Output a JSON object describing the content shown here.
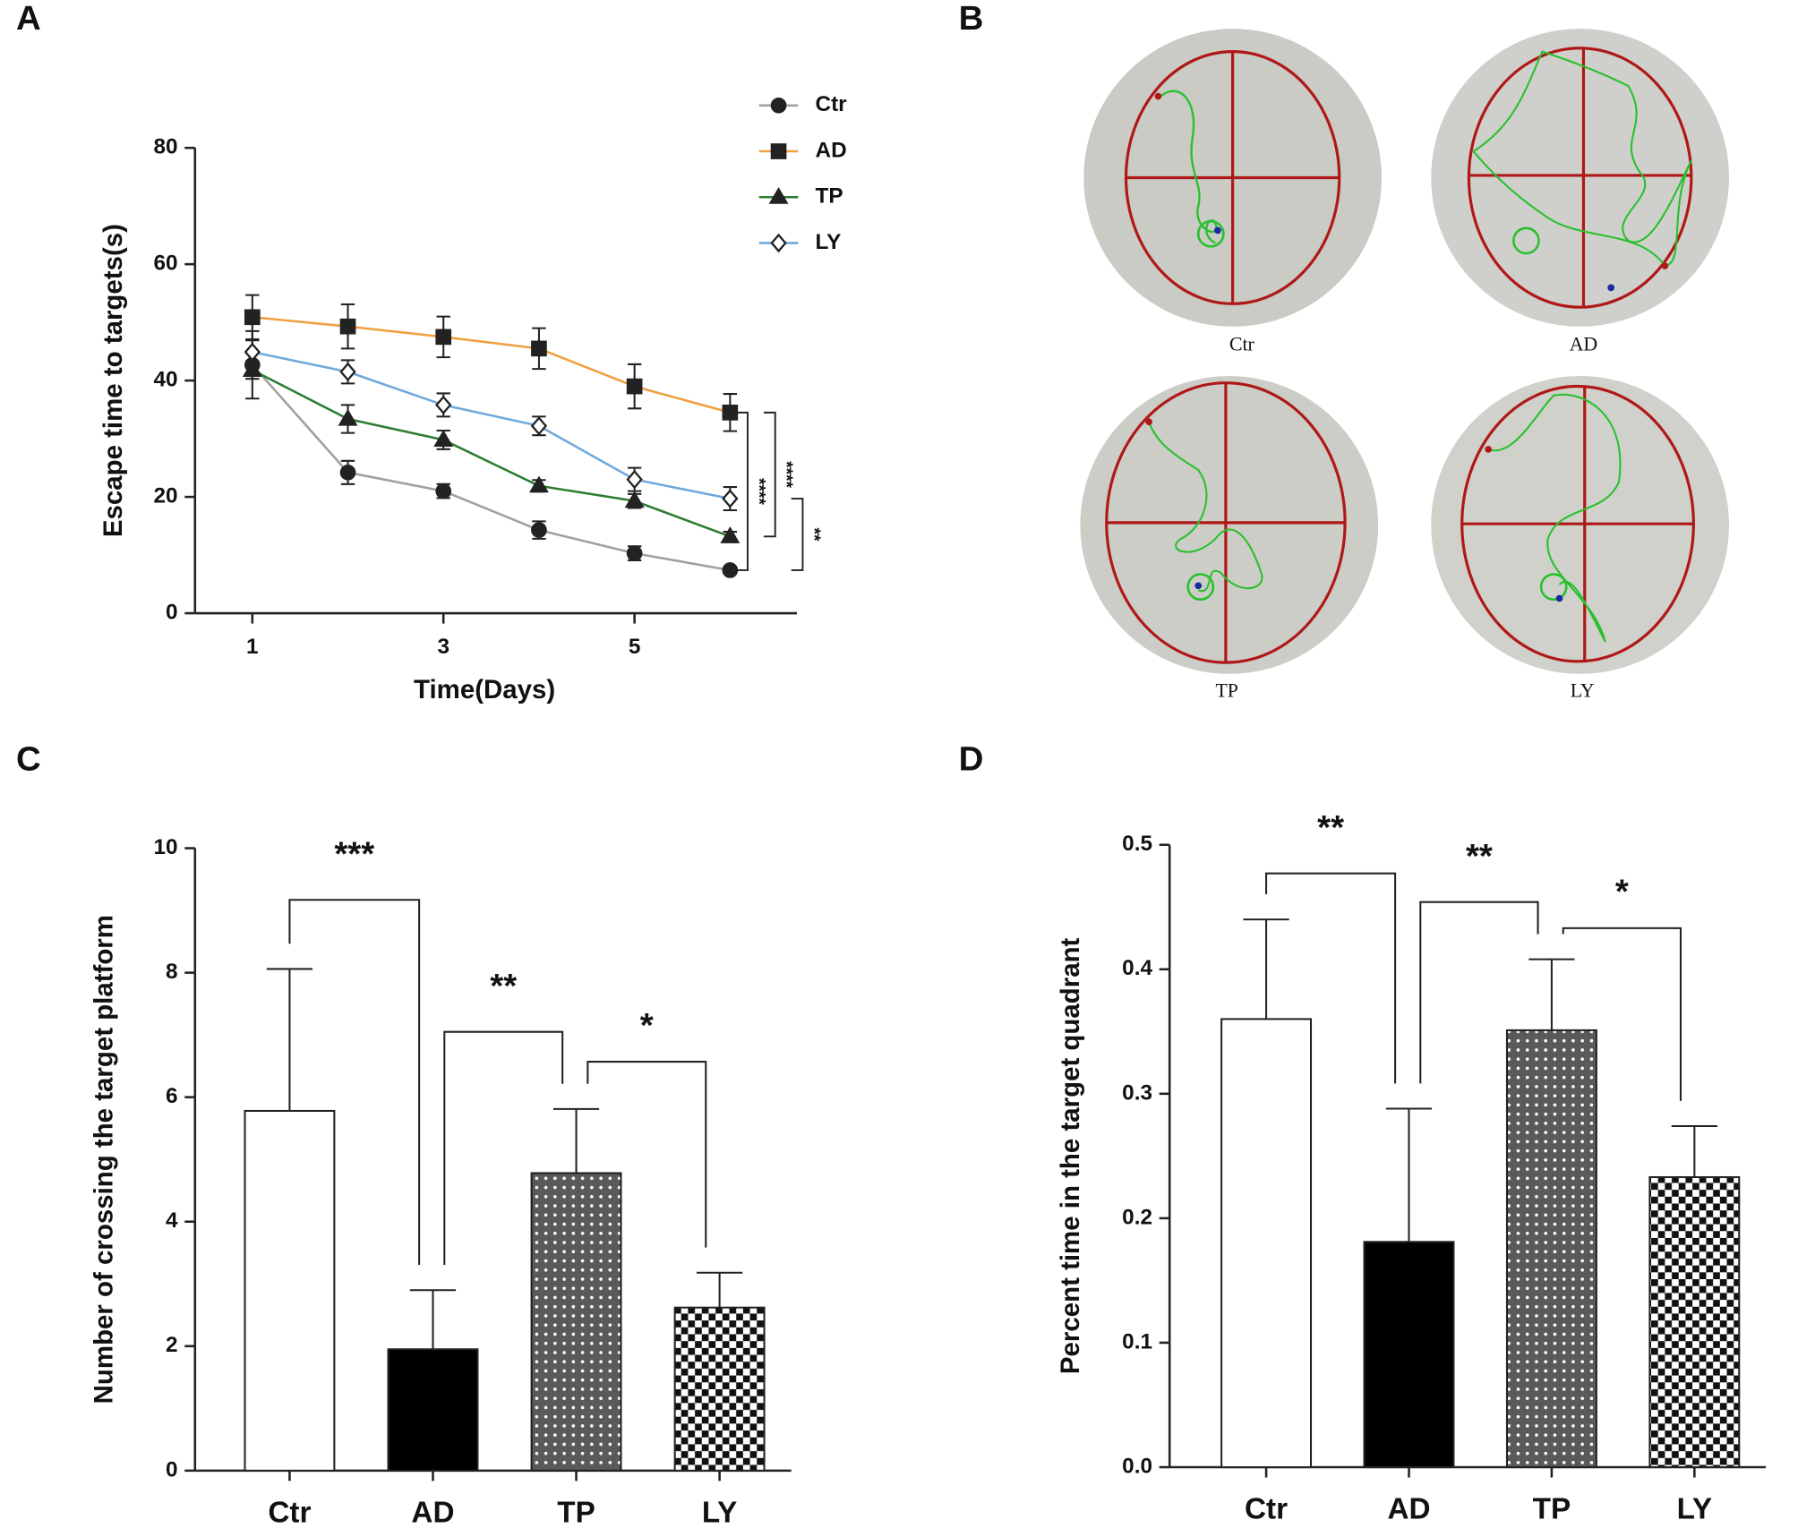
{
  "panel_labels": [
    "A",
    "B",
    "C",
    "D"
  ],
  "maze_panels": {
    "labels": [
      "Ctr",
      "AD",
      "TP",
      "LY"
    ]
  },
  "chart_data": [
    {
      "type": "line",
      "y_label": "Escape time to targets(s)",
      "x_label": "Time(Days)",
      "x": [
        1,
        2,
        3,
        4,
        5,
        6
      ],
      "xlim": [
        0.4,
        6.7
      ],
      "xticks": [
        1,
        3,
        5
      ],
      "ylim": [
        0,
        80
      ],
      "yticks": [
        0,
        20,
        40,
        60,
        80
      ],
      "series": [
        {
          "name": "Ctr",
          "color": "#a0a0a0",
          "marker": "circle",
          "marker_filled": true,
          "values": [
            42.7,
            24.2,
            21.0,
            14.3,
            10.3,
            7.4
          ],
          "errors": [
            5.8,
            2.0,
            1.2,
            1.5,
            1.2,
            0.5
          ]
        },
        {
          "name": "AD",
          "color": "#f0a040",
          "marker": "square",
          "marker_filled": true,
          "values": [
            50.9,
            49.3,
            47.5,
            45.5,
            39.0,
            34.5
          ],
          "errors": [
            3.8,
            3.8,
            3.5,
            3.5,
            3.8,
            3.2
          ]
        },
        {
          "name": "TP",
          "color": "#2e7d32",
          "marker": "triangle",
          "marker_filled": true,
          "values": [
            41.8,
            33.4,
            29.8,
            21.9,
            19.3,
            13.2
          ],
          "errors": [
            1.5,
            2.4,
            1.6,
            1.0,
            1.2,
            0.8
          ]
        },
        {
          "name": "LY",
          "color": "#6fa8dc",
          "marker": "diamond",
          "marker_filled": false,
          "values": [
            44.9,
            41.5,
            35.8,
            32.2,
            23.0,
            19.7
          ],
          "errors": [
            2.0,
            2.0,
            2.0,
            1.6,
            2.0,
            2.0
          ]
        }
      ],
      "annotations": [
        {
          "text": "****",
          "between": [
            1,
            0
          ]
        },
        {
          "text": "****",
          "between": [
            1,
            2
          ]
        },
        {
          "text": "**",
          "between": [
            3,
            0
          ]
        }
      ]
    },
    {
      "type": "bar",
      "y_label": "Number of crossing the target platform",
      "categories": [
        "Ctr",
        "AD",
        "TP",
        "LY"
      ],
      "values": [
        5.78,
        1.95,
        4.78,
        2.62
      ],
      "errors": [
        2.28,
        0.95,
        1.03,
        0.56
      ],
      "fills": [
        "white",
        "black",
        "dots",
        "checker"
      ],
      "ylim": [
        0,
        10
      ],
      "yticks": [
        0,
        2,
        4,
        6,
        8,
        10
      ],
      "annotations": [
        {
          "text": "***",
          "between": [
            0,
            1
          ],
          "level": 9.17
        },
        {
          "text": "**",
          "between": [
            1,
            2
          ],
          "level": 7.05
        },
        {
          "text": "*",
          "between": [
            2,
            3
          ],
          "level": 6.57
        }
      ]
    },
    {
      "type": "bar",
      "y_label": "Percent time in the target quadrant",
      "categories": [
        "Ctr",
        "AD",
        "TP",
        "LY"
      ],
      "values": [
        0.36,
        0.181,
        0.351,
        0.233
      ],
      "errors": [
        0.08,
        0.107,
        0.057,
        0.041
      ],
      "fills": [
        "white",
        "black",
        "dots",
        "checker"
      ],
      "ylim": [
        0,
        0.5
      ],
      "yticks": [
        {
          "value": 0,
          "label": "0.0"
        },
        0.1,
        0.2,
        0.3,
        0.4,
        0.5
      ],
      "annotations": [
        {
          "text": "**",
          "between": [
            0,
            1
          ],
          "level": 0.477
        },
        {
          "text": "**",
          "between": [
            1,
            2
          ],
          "level": 0.454
        },
        {
          "text": "*",
          "between": [
            2,
            3
          ],
          "level": 0.433
        }
      ]
    }
  ]
}
